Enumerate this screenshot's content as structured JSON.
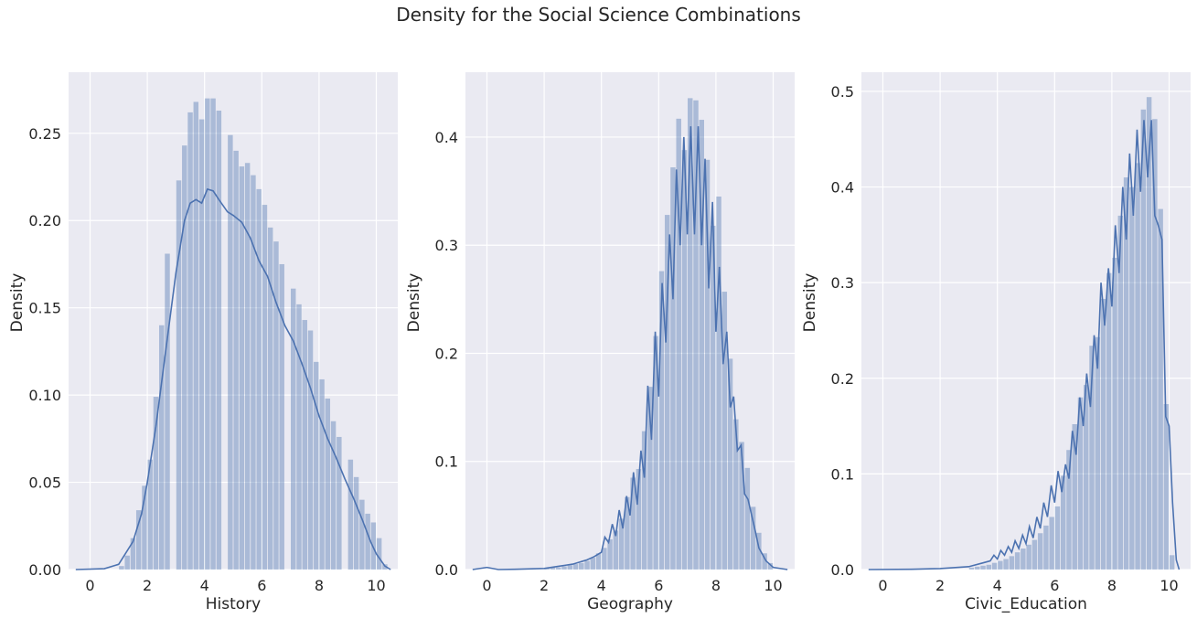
{
  "figure": {
    "title": "Density for the Social Science Combinations"
  },
  "colors": {
    "background": "#EAEAF2",
    "grid": "#FFFFFF",
    "hist": "#4C72B0",
    "kde": "#4C72B0"
  },
  "chart_data": [
    {
      "type": "bar",
      "xlabel": "History",
      "ylabel": "Density",
      "xlim": [
        -0.75,
        10.75
      ],
      "ylim": [
        0,
        0.285
      ],
      "xticks": [
        0,
        2,
        4,
        6,
        8,
        10
      ],
      "yticks": [
        0.0,
        0.05,
        0.1,
        0.15,
        0.2,
        0.25
      ],
      "ytick_labels": [
        "0.00",
        "0.05",
        "0.10",
        "0.15",
        "0.20",
        "0.25"
      ],
      "xtick_labels": [
        "0",
        "2",
        "4",
        "6",
        "8",
        "10"
      ],
      "grid": true,
      "bar_width": 0.2,
      "bars": [
        [
          1.1,
          0.002
        ],
        [
          1.3,
          0.008
        ],
        [
          1.5,
          0.018
        ],
        [
          1.7,
          0.034
        ],
        [
          1.9,
          0.048
        ],
        [
          2.1,
          0.063
        ],
        [
          2.3,
          0.099
        ],
        [
          2.5,
          0.14
        ],
        [
          2.7,
          0.181
        ],
        [
          3.1,
          0.223
        ],
        [
          3.3,
          0.243
        ],
        [
          3.5,
          0.262
        ],
        [
          3.7,
          0.268
        ],
        [
          3.9,
          0.258
        ],
        [
          4.1,
          0.27
        ],
        [
          4.3,
          0.27
        ],
        [
          4.5,
          0.263
        ],
        [
          4.9,
          0.249
        ],
        [
          5.1,
          0.24
        ],
        [
          5.3,
          0.231
        ],
        [
          5.5,
          0.233
        ],
        [
          5.7,
          0.226
        ],
        [
          5.9,
          0.218
        ],
        [
          6.1,
          0.209
        ],
        [
          6.3,
          0.196
        ],
        [
          6.5,
          0.188
        ],
        [
          6.7,
          0.175
        ],
        [
          7.1,
          0.161
        ],
        [
          7.3,
          0.152
        ],
        [
          7.5,
          0.143
        ],
        [
          7.7,
          0.137
        ],
        [
          7.9,
          0.119
        ],
        [
          8.1,
          0.109
        ],
        [
          8.3,
          0.098
        ],
        [
          8.5,
          0.085
        ],
        [
          8.7,
          0.076
        ],
        [
          9.1,
          0.063
        ],
        [
          9.3,
          0.053
        ],
        [
          9.5,
          0.04
        ],
        [
          9.7,
          0.032
        ],
        [
          9.9,
          0.027
        ],
        [
          10.1,
          0.018
        ],
        [
          10.3,
          0.003
        ]
      ],
      "kde": [
        [
          -0.5,
          0.0
        ],
        [
          0.5,
          0.0005
        ],
        [
          1.0,
          0.003
        ],
        [
          1.5,
          0.016
        ],
        [
          1.8,
          0.032
        ],
        [
          2.0,
          0.05
        ],
        [
          2.3,
          0.082
        ],
        [
          2.6,
          0.12
        ],
        [
          2.8,
          0.145
        ],
        [
          3.0,
          0.17
        ],
        [
          3.3,
          0.2
        ],
        [
          3.5,
          0.21
        ],
        [
          3.7,
          0.212
        ],
        [
          3.9,
          0.21
        ],
        [
          4.1,
          0.218
        ],
        [
          4.3,
          0.217
        ],
        [
          4.5,
          0.212
        ],
        [
          4.8,
          0.205
        ],
        [
          5.0,
          0.203
        ],
        [
          5.3,
          0.199
        ],
        [
          5.6,
          0.19
        ],
        [
          5.9,
          0.177
        ],
        [
          6.2,
          0.168
        ],
        [
          6.5,
          0.153
        ],
        [
          6.8,
          0.14
        ],
        [
          7.1,
          0.131
        ],
        [
          7.4,
          0.118
        ],
        [
          7.7,
          0.104
        ],
        [
          8.0,
          0.088
        ],
        [
          8.3,
          0.075
        ],
        [
          8.6,
          0.064
        ],
        [
          8.9,
          0.052
        ],
        [
          9.2,
          0.041
        ],
        [
          9.5,
          0.029
        ],
        [
          9.8,
          0.016
        ],
        [
          10.0,
          0.009
        ],
        [
          10.3,
          0.002
        ],
        [
          10.5,
          0.0
        ]
      ]
    },
    {
      "type": "bar",
      "xlabel": "Geography",
      "ylabel": "Density",
      "xlim": [
        -0.75,
        10.75
      ],
      "ylim": [
        0,
        0.46
      ],
      "xticks": [
        0,
        2,
        4,
        6,
        8,
        10
      ],
      "yticks": [
        0.0,
        0.1,
        0.2,
        0.3,
        0.4
      ],
      "ytick_labels": [
        "0.0",
        "0.1",
        "0.2",
        "0.3",
        "0.4"
      ],
      "xtick_labels": [
        "0",
        "2",
        "4",
        "6",
        "8",
        "10"
      ],
      "grid": true,
      "bar_width": 0.2,
      "bars": [
        [
          2.1,
          0.001
        ],
        [
          2.3,
          0.002
        ],
        [
          2.5,
          0.002
        ],
        [
          2.7,
          0.003
        ],
        [
          2.9,
          0.004
        ],
        [
          3.1,
          0.005
        ],
        [
          3.3,
          0.006
        ],
        [
          3.5,
          0.008
        ],
        [
          3.7,
          0.011
        ],
        [
          3.9,
          0.015
        ],
        [
          4.1,
          0.02
        ],
        [
          4.3,
          0.028
        ],
        [
          4.5,
          0.036
        ],
        [
          4.7,
          0.047
        ],
        [
          4.9,
          0.067
        ],
        [
          5.1,
          0.085
        ],
        [
          5.3,
          0.093
        ],
        [
          5.5,
          0.128
        ],
        [
          5.7,
          0.169
        ],
        [
          5.9,
          0.216
        ],
        [
          6.1,
          0.276
        ],
        [
          6.3,
          0.328
        ],
        [
          6.5,
          0.372
        ],
        [
          6.7,
          0.417
        ],
        [
          6.9,
          0.388
        ],
        [
          7.1,
          0.436
        ],
        [
          7.3,
          0.434
        ],
        [
          7.5,
          0.416
        ],
        [
          7.7,
          0.379
        ],
        [
          7.9,
          0.318
        ],
        [
          8.1,
          0.345
        ],
        [
          8.3,
          0.257
        ],
        [
          8.5,
          0.195
        ],
        [
          8.7,
          0.139
        ],
        [
          8.9,
          0.118
        ],
        [
          9.1,
          0.094
        ],
        [
          9.3,
          0.058
        ],
        [
          9.5,
          0.034
        ],
        [
          9.7,
          0.015
        ],
        [
          9.9,
          0.006
        ]
      ],
      "kde": [
        [
          -0.5,
          0.0
        ],
        [
          0.0,
          0.002
        ],
        [
          0.4,
          0.0
        ],
        [
          1.0,
          0.0003
        ],
        [
          2.0,
          0.001
        ],
        [
          2.5,
          0.003
        ],
        [
          2.75,
          0.004
        ],
        [
          3.0,
          0.005
        ],
        [
          3.25,
          0.007
        ],
        [
          3.5,
          0.009
        ],
        [
          3.75,
          0.012
        ],
        [
          4.0,
          0.016
        ],
        [
          4.12,
          0.03
        ],
        [
          4.25,
          0.025
        ],
        [
          4.38,
          0.042
        ],
        [
          4.5,
          0.031
        ],
        [
          4.62,
          0.055
        ],
        [
          4.75,
          0.038
        ],
        [
          4.88,
          0.068
        ],
        [
          5.0,
          0.05
        ],
        [
          5.12,
          0.09
        ],
        [
          5.25,
          0.06
        ],
        [
          5.38,
          0.11
        ],
        [
          5.5,
          0.085
        ],
        [
          5.62,
          0.17
        ],
        [
          5.75,
          0.12
        ],
        [
          5.88,
          0.22
        ],
        [
          6.0,
          0.16
        ],
        [
          6.12,
          0.265
        ],
        [
          6.25,
          0.21
        ],
        [
          6.38,
          0.31
        ],
        [
          6.5,
          0.25
        ],
        [
          6.62,
          0.37
        ],
        [
          6.75,
          0.3
        ],
        [
          6.88,
          0.4
        ],
        [
          7.0,
          0.31
        ],
        [
          7.12,
          0.41
        ],
        [
          7.25,
          0.31
        ],
        [
          7.38,
          0.41
        ],
        [
          7.5,
          0.3
        ],
        [
          7.62,
          0.38
        ],
        [
          7.75,
          0.26
        ],
        [
          7.88,
          0.34
        ],
        [
          8.0,
          0.22
        ],
        [
          8.12,
          0.28
        ],
        [
          8.25,
          0.19
        ],
        [
          8.38,
          0.22
        ],
        [
          8.5,
          0.15
        ],
        [
          8.62,
          0.16
        ],
        [
          8.75,
          0.11
        ],
        [
          8.88,
          0.115
        ],
        [
          9.0,
          0.07
        ],
        [
          9.12,
          0.065
        ],
        [
          9.25,
          0.05
        ],
        [
          9.38,
          0.035
        ],
        [
          9.5,
          0.02
        ],
        [
          9.75,
          0.008
        ],
        [
          10.0,
          0.002
        ],
        [
          10.5,
          0.0
        ]
      ]
    },
    {
      "type": "bar",
      "xlabel": "Civic_Education",
      "ylabel": "Density",
      "xlim": [
        -0.75,
        10.75
      ],
      "ylim": [
        0,
        0.52
      ],
      "xticks": [
        0,
        2,
        4,
        6,
        8,
        10
      ],
      "yticks": [
        0.0,
        0.1,
        0.2,
        0.3,
        0.4,
        0.5
      ],
      "ytick_labels": [
        "0.0",
        "0.1",
        "0.2",
        "0.3",
        "0.4",
        "0.5"
      ],
      "xtick_labels": [
        "0",
        "2",
        "4",
        "6",
        "8",
        "10"
      ],
      "grid": true,
      "bar_width": 0.2,
      "bars": [
        [
          3.1,
          0.002
        ],
        [
          3.3,
          0.003
        ],
        [
          3.5,
          0.004
        ],
        [
          3.7,
          0.005
        ],
        [
          3.9,
          0.007
        ],
        [
          4.1,
          0.009
        ],
        [
          4.3,
          0.011
        ],
        [
          4.5,
          0.014
        ],
        [
          4.7,
          0.018
        ],
        [
          4.9,
          0.022
        ],
        [
          5.1,
          0.026
        ],
        [
          5.3,
          0.031
        ],
        [
          5.5,
          0.038
        ],
        [
          5.7,
          0.046
        ],
        [
          5.9,
          0.055
        ],
        [
          6.1,
          0.066
        ],
        [
          6.3,
          0.098
        ],
        [
          6.5,
          0.125
        ],
        [
          6.7,
          0.152
        ],
        [
          6.9,
          0.18
        ],
        [
          7.1,
          0.193
        ],
        [
          7.3,
          0.234
        ],
        [
          7.5,
          0.243
        ],
        [
          7.7,
          0.283
        ],
        [
          7.9,
          0.31
        ],
        [
          8.1,
          0.326
        ],
        [
          8.3,
          0.37
        ],
        [
          8.5,
          0.41
        ],
        [
          8.7,
          0.4
        ],
        [
          8.9,
          0.425
        ],
        [
          9.1,
          0.481
        ],
        [
          9.3,
          0.494
        ],
        [
          9.5,
          0.471
        ],
        [
          9.7,
          0.377
        ],
        [
          9.9,
          0.173
        ],
        [
          10.1,
          0.015
        ]
      ],
      "kde": [
        [
          -0.5,
          0.0
        ],
        [
          1.0,
          0.0003
        ],
        [
          2.0,
          0.001
        ],
        [
          3.0,
          0.003
        ],
        [
          3.5,
          0.007
        ],
        [
          3.75,
          0.009
        ],
        [
          3.88,
          0.015
        ],
        [
          4.0,
          0.011
        ],
        [
          4.12,
          0.02
        ],
        [
          4.25,
          0.015
        ],
        [
          4.38,
          0.024
        ],
        [
          4.5,
          0.018
        ],
        [
          4.62,
          0.03
        ],
        [
          4.75,
          0.022
        ],
        [
          4.88,
          0.036
        ],
        [
          5.0,
          0.027
        ],
        [
          5.12,
          0.045
        ],
        [
          5.25,
          0.033
        ],
        [
          5.38,
          0.055
        ],
        [
          5.5,
          0.043
        ],
        [
          5.62,
          0.07
        ],
        [
          5.75,
          0.055
        ],
        [
          5.88,
          0.088
        ],
        [
          6.0,
          0.07
        ],
        [
          6.12,
          0.103
        ],
        [
          6.25,
          0.081
        ],
        [
          6.38,
          0.11
        ],
        [
          6.5,
          0.095
        ],
        [
          6.62,
          0.145
        ],
        [
          6.75,
          0.12
        ],
        [
          6.88,
          0.18
        ],
        [
          7.0,
          0.15
        ],
        [
          7.12,
          0.205
        ],
        [
          7.25,
          0.17
        ],
        [
          7.38,
          0.245
        ],
        [
          7.5,
          0.21
        ],
        [
          7.62,
          0.3
        ],
        [
          7.75,
          0.255
        ],
        [
          7.88,
          0.315
        ],
        [
          8.0,
          0.275
        ],
        [
          8.12,
          0.36
        ],
        [
          8.25,
          0.31
        ],
        [
          8.38,
          0.4
        ],
        [
          8.5,
          0.345
        ],
        [
          8.62,
          0.435
        ],
        [
          8.75,
          0.37
        ],
        [
          8.88,
          0.46
        ],
        [
          9.0,
          0.395
        ],
        [
          9.12,
          0.47
        ],
        [
          9.25,
          0.41
        ],
        [
          9.38,
          0.47
        ],
        [
          9.5,
          0.37
        ],
        [
          9.62,
          0.36
        ],
        [
          9.75,
          0.345
        ],
        [
          9.88,
          0.16
        ],
        [
          10.0,
          0.15
        ],
        [
          10.12,
          0.07
        ],
        [
          10.25,
          0.01
        ],
        [
          10.35,
          0.0
        ]
      ]
    }
  ]
}
